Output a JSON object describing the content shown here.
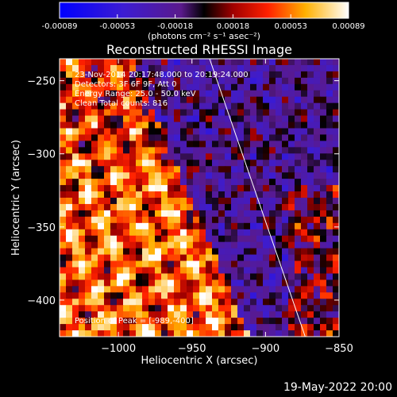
{
  "colorbar": {
    "ticks": [
      "-0.00089",
      "-0.00053",
      "-0.00018",
      "0.00018",
      "0.00053",
      "0.00089"
    ],
    "unit_label": "(photons cm⁻² s⁻¹ asec⁻²)",
    "min": -0.00089,
    "max": 0.00089
  },
  "chart_data": {
    "type": "heatmap",
    "title": "Reconstructed RHESSI Image",
    "xlabel": "Heliocentric X (arcsec)",
    "ylabel": "Heliocentric Y (arcsec)",
    "xlim": [
      -1040,
      -850
    ],
    "ylim": [
      -425,
      -235
    ],
    "xticks": [
      -1000,
      -950,
      -900,
      -850
    ],
    "xtick_labels": [
      "−1000",
      "−950",
      "−900",
      "−850"
    ],
    "yticks": [
      -250,
      -300,
      -350,
      -400
    ],
    "ytick_labels": [
      "−250",
      "−300",
      "−350",
      "−400"
    ],
    "limb_line": {
      "x": [
        -938,
        -873
      ],
      "y": [
        -235,
        -425
      ]
    },
    "annotations": [
      "23-Nov-2014 20:17:48.000 to 20:19:24.000",
      "Detectors: 3F 6F 9F, Att 0",
      "Energy Range: 25.0 - 50.0 keV",
      "Clean     Total counts: 816"
    ],
    "peak_label": "Position of Peak = [-989,-400]",
    "colormap": "blue-purple-red-yellow-white"
  },
  "footer_date": "19-May-2022 20:00"
}
